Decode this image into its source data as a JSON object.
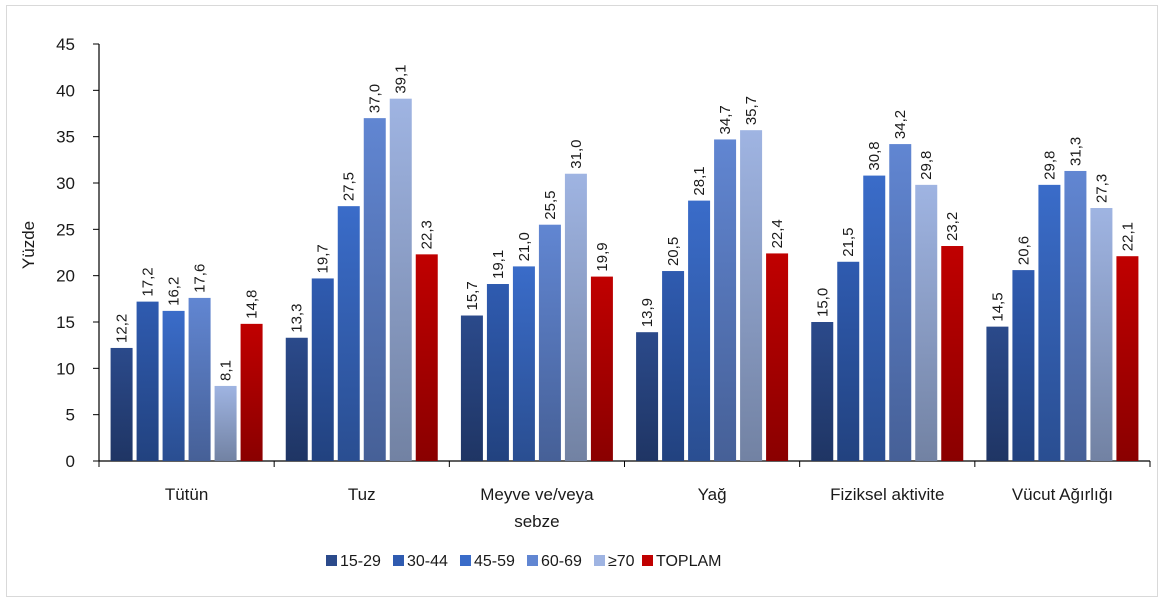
{
  "chart_data": {
    "type": "bar",
    "title": "",
    "xlabel": "",
    "ylabel": "Yüzde",
    "ylim": [
      0,
      45
    ],
    "yticks": [
      0,
      5,
      10,
      15,
      20,
      25,
      30,
      35,
      40,
      45
    ],
    "grid": false,
    "legend_position": "bottom",
    "categories": [
      [
        "Tütün"
      ],
      [
        "Tuz"
      ],
      [
        "Meyve ve/veya",
        "sebze"
      ],
      [
        "Yağ"
      ],
      [
        "Fiziksel aktivite"
      ],
      [
        "Vücut Ağırlığı"
      ]
    ],
    "value_format": "decimal-comma",
    "series": [
      {
        "name": "15-29",
        "color": "#2b4a8b",
        "values": [
          12.2,
          13.3,
          15.7,
          13.9,
          15.0,
          14.5
        ],
        "labels": [
          "12,2",
          "13,3",
          "15,7",
          "13,9",
          "15,0",
          "14,5"
        ]
      },
      {
        "name": "30-44",
        "color": "#2f5bb0",
        "values": [
          17.2,
          19.7,
          19.1,
          20.5,
          21.5,
          20.6
        ],
        "labels": [
          "17,2",
          "19,7",
          "19,1",
          "20,5",
          "21,5",
          "20,6"
        ]
      },
      {
        "name": "45-59",
        "color": "#3a6cc9",
        "values": [
          16.2,
          27.5,
          21.0,
          28.1,
          30.8,
          29.8
        ],
        "labels": [
          "16,2",
          "27,5",
          "21,0",
          "28,1",
          "30,8",
          "29,8"
        ]
      },
      {
        "name": "60-69",
        "color": "#6186d2",
        "values": [
          17.6,
          37.0,
          25.5,
          34.7,
          34.2,
          31.3
        ],
        "labels": [
          "17,6",
          "37,0",
          "25,5",
          "34,7",
          "34,2",
          "31,3"
        ]
      },
      {
        "name": "≥70",
        "color": "#9fb4e2",
        "values": [
          8.1,
          39.1,
          31.0,
          35.7,
          29.8,
          27.3
        ],
        "labels": [
          "8,1",
          "39,1",
          "31,0",
          "35,7",
          "29,8",
          "27,3"
        ]
      },
      {
        "name": "TOPLAM",
        "color": "#c00000",
        "values": [
          14.8,
          22.3,
          19.9,
          22.4,
          23.2,
          22.1
        ],
        "labels": [
          "14,8",
          "22,3",
          "19,9",
          "22,4",
          "23,2",
          "22,1"
        ]
      }
    ]
  }
}
